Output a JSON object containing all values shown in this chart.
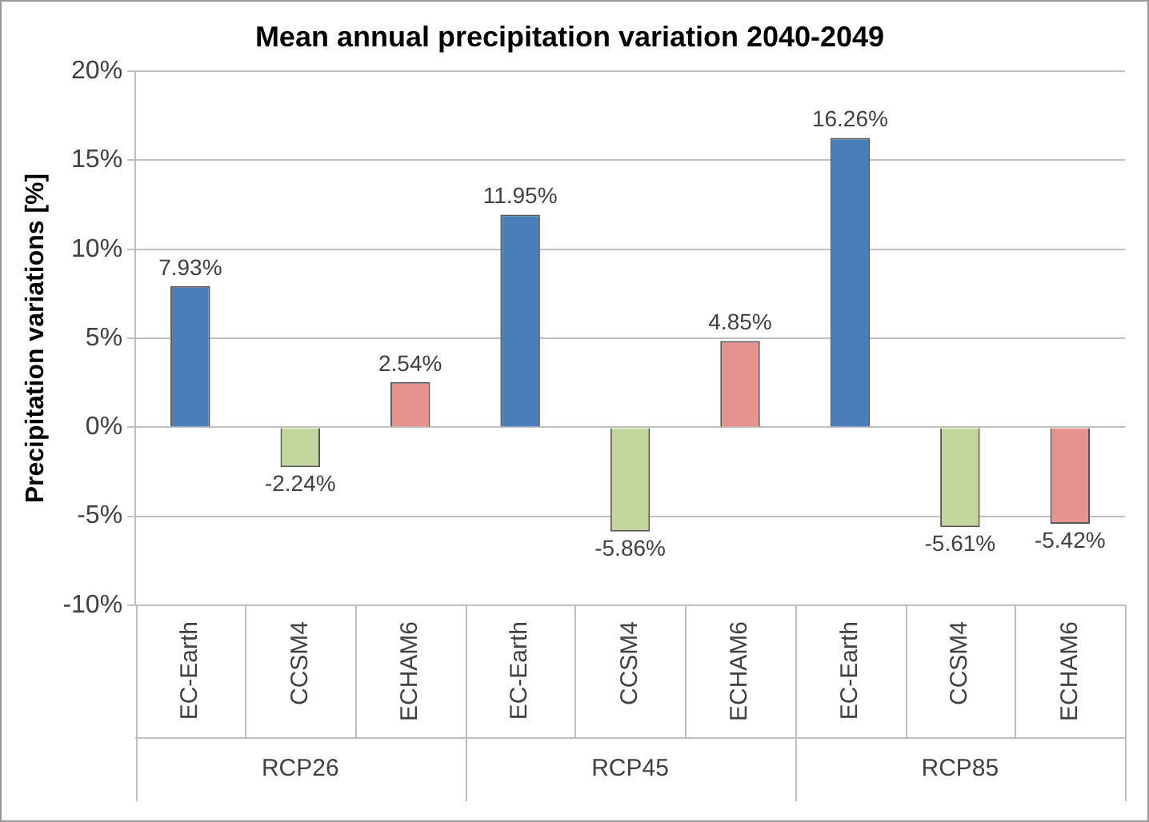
{
  "chart_data": {
    "type": "bar",
    "title": "Mean annual precipitation variation 2040-2049",
    "ylabel": "Precipitation variations [%]",
    "categories": [
      "EC-Earth",
      "CCSM4",
      "ECHAM6",
      "EC-Earth",
      "CCSM4",
      "ECHAM6",
      "EC-Earth",
      "CCSM4",
      "ECHAM6"
    ],
    "values": [
      7.93,
      -2.24,
      2.54,
      11.95,
      -5.86,
      4.85,
      16.26,
      -5.61,
      -5.42
    ],
    "colors": [
      "#4a7ebb",
      "#c3d69b",
      "#e6928f",
      "#4a7ebb",
      "#c3d69b",
      "#e6928f",
      "#4a7ebb",
      "#c3d69b",
      "#e6928f"
    ],
    "value_labels": [
      "7.93%",
      "-2.24%",
      "2.54%",
      "11.95%",
      "-5.86%",
      "4.85%",
      "16.26%",
      "-5.61%",
      "-5.42%"
    ],
    "annotations": [
      "RCP26",
      "RCP45",
      "RCP85"
    ],
    "ylim": [
      -10,
      20
    ],
    "yticks": [
      {
        "value": -10,
        "label": "-10%"
      },
      {
        "value": -5,
        "label": "-5%"
      },
      {
        "value": 0,
        "label": "0%"
      },
      {
        "value": 5,
        "label": "5%"
      },
      {
        "value": 10,
        "label": "10%"
      },
      {
        "value": 15,
        "label": "15%"
      },
      {
        "value": 20,
        "label": "20%"
      }
    ],
    "grid": "y",
    "legend": false
  }
}
